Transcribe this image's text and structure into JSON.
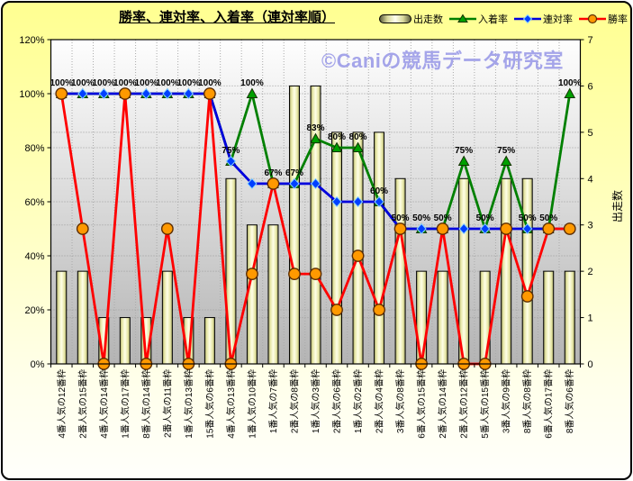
{
  "header": {
    "title": "勝率、連対率、入着率（連対率順）"
  },
  "watermark": "©Caniの競馬データ研究室",
  "legend": {
    "items": [
      {
        "label": "出走数",
        "type": "bar"
      },
      {
        "label": "入着率",
        "type": "line-triangle",
        "color": "#008000"
      },
      {
        "label": "連対率",
        "type": "line-diamond",
        "color": "#0000dd"
      },
      {
        "label": "勝率",
        "type": "line-circle",
        "color": "#ff0000"
      }
    ]
  },
  "chart_data": {
    "type": "bar+line combo",
    "title": "勝率、連対率、入着率（連対率順）",
    "categories": [
      "4番人気の12番枠",
      "2番人気の15番枠",
      "4番人気の14番枠",
      "1番人気の17番枠",
      "8番人気の14番枠",
      "2番人気の11番枠",
      "1番人気の13番枠",
      "15番人気の6番枠",
      "4番人気の13番枠",
      "1番人気の10番枠",
      "1番人気の7番枠",
      "2番人気の8番枠",
      "1番人気の3番枠",
      "2番人気の6番枠",
      "1番人気の2番枠",
      "2番人気の4番枠",
      "3番人気の8番枠",
      "6番人気の15番枠",
      "2番人気の14番枠",
      "2番人気の12番枠",
      "5番人気の15番枠",
      "3番人気の9番枠",
      "8番人気の8番枠",
      "6番人気の17番枠",
      "8番人気の6番枠"
    ],
    "series": [
      {
        "name": "出走数",
        "type": "bar",
        "axis": "right",
        "values": [
          2,
          2,
          1,
          1,
          1,
          2,
          1,
          1,
          4,
          3,
          3,
          6,
          6,
          5,
          5,
          5,
          4,
          2,
          2,
          4,
          2,
          4,
          4,
          2,
          2
        ]
      },
      {
        "name": "入着率",
        "type": "line",
        "marker": "triangle",
        "axis": "left",
        "color": "#008000",
        "values": [
          100,
          100,
          100,
          100,
          100,
          100,
          100,
          100,
          75,
          100,
          66.7,
          66.7,
          83.3,
          80,
          80,
          60,
          50,
          50,
          50,
          75,
          50,
          75,
          50,
          50,
          100
        ],
        "point_labels": [
          "100%",
          "100%",
          "100%",
          "100%",
          "100%",
          "100%",
          "100%",
          "100%",
          "75%",
          "100%",
          "67%",
          "67%",
          "83%",
          "80%",
          "80%",
          "60%",
          "50%",
          "50%",
          "50%",
          "75%",
          "50%",
          "75%",
          "50%",
          "50%",
          "100%"
        ]
      },
      {
        "name": "連対率",
        "type": "line",
        "marker": "diamond",
        "axis": "left",
        "color": "#0000dd",
        "values": [
          100,
          100,
          100,
          100,
          100,
          100,
          100,
          100,
          75,
          66.7,
          66.7,
          66.7,
          66.7,
          60,
          60,
          60,
          50,
          50,
          50,
          50,
          50,
          50,
          50,
          50,
          50
        ]
      },
      {
        "name": "勝率",
        "type": "line",
        "marker": "circle",
        "axis": "left",
        "color": "#ff0000",
        "values": [
          100,
          50,
          0,
          100,
          0,
          50,
          0,
          100,
          0,
          33.3,
          66.7,
          33.3,
          33.3,
          20,
          40,
          20,
          50,
          0,
          50,
          0,
          0,
          50,
          25,
          50,
          50
        ]
      }
    ],
    "left_axis": {
      "min": 0,
      "max": 120,
      "tick_labels": [
        "0%",
        "20%",
        "40%",
        "60%",
        "80%",
        "100%",
        "120%"
      ],
      "grid": true
    },
    "right_axis": {
      "min": 0,
      "max": 7,
      "title": "出走数",
      "tick_labels": [
        "0",
        "1",
        "2",
        "3",
        "4",
        "5",
        "6",
        "7"
      ],
      "grid": true
    },
    "legend_position": "top-right"
  }
}
